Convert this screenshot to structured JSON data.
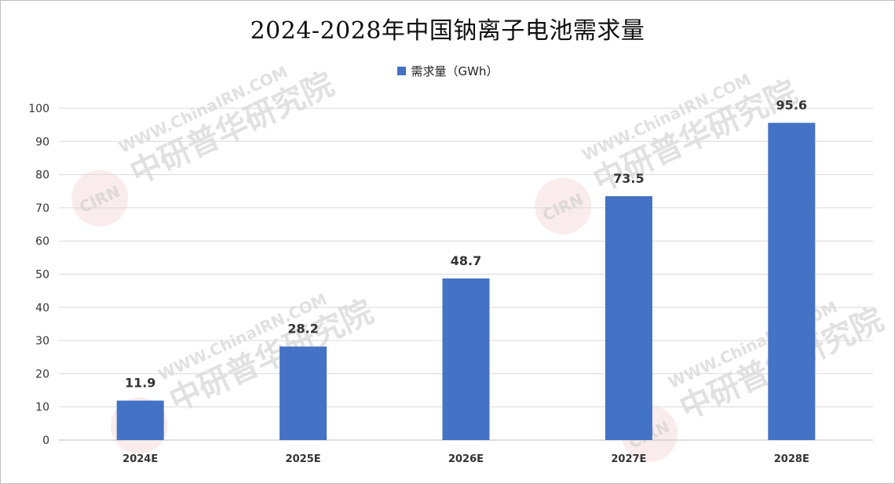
{
  "chart_data": {
    "type": "bar",
    "title": "2024-2028年中国钠离子电池需求量",
    "xlabel": "",
    "ylabel": "",
    "categories": [
      "2024E",
      "2025E",
      "2026E",
      "2027E",
      "2028E"
    ],
    "series": [
      {
        "name": "需求量（GWh）",
        "color": "#4472c4",
        "values": [
          11.9,
          28.2,
          48.7,
          73.5,
          95.6
        ],
        "data_labels": [
          "11.9",
          "28.2",
          "48.7",
          "73.5",
          "95.6"
        ]
      }
    ],
    "ylim": [
      0,
      100
    ],
    "yticks": [
      0,
      10,
      20,
      30,
      40,
      50,
      60,
      70,
      80,
      90,
      100
    ],
    "grid": "horizontal",
    "legend_position": "top-center"
  },
  "watermark": {
    "url": "WWW.ChinaIRN.COM",
    "name": "中研普华研究院",
    "logo": "CIRN"
  }
}
